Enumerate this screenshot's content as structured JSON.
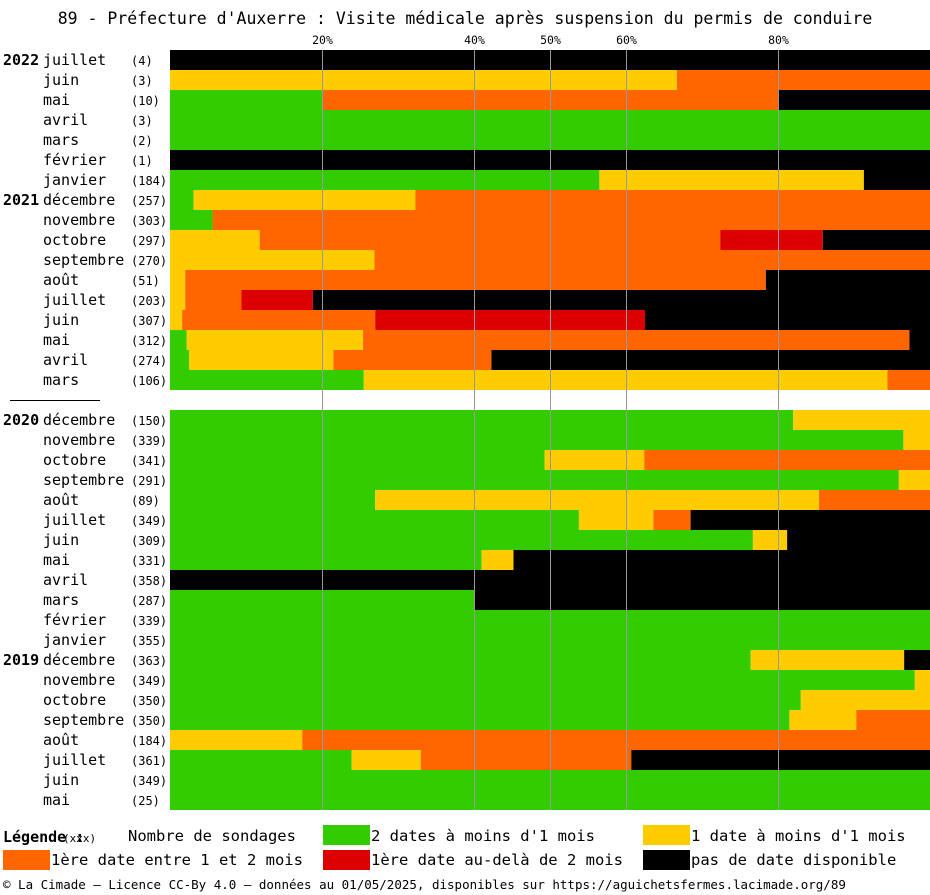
{
  "title": "89 - Préfecture d'Auxerre : Visite médicale après suspension du permis de conduire",
  "chart_data": {
    "type": "bar",
    "orientation": "horizontal",
    "stacked": true,
    "x_unit": "percent",
    "xlim": [
      0,
      100
    ],
    "x_ticks": [
      {
        "value": 20,
        "label": "20%"
      },
      {
        "value": 40,
        "label": "40%"
      },
      {
        "value": 50,
        "label": "50%"
      },
      {
        "value": 60,
        "label": "60%"
      },
      {
        "value": 80,
        "label": "80%"
      }
    ],
    "grid": true,
    "categories_order": [
      "green",
      "yellow",
      "orange",
      "red",
      "black"
    ],
    "colors": {
      "green": "#33cc00",
      "yellow": "#ffcc00",
      "orange": "#ff6600",
      "red": "#dd0000",
      "black": "#000000"
    },
    "years": [
      {
        "label": "2022",
        "months": [
          {
            "month": "juillet",
            "count": "(4)",
            "values": [
              0,
              0,
              0,
              0,
              100
            ]
          },
          {
            "month": "juin",
            "count": "(3)",
            "values": [
              0,
              66.7,
              33.3,
              0,
              0
            ]
          },
          {
            "month": "mai",
            "count": "(10)",
            "values": [
              20,
              0,
              60,
              0,
              20
            ]
          },
          {
            "month": "avril",
            "count": "(3)",
            "values": [
              100,
              0,
              0,
              0,
              0
            ]
          },
          {
            "month": "mars",
            "count": "(2)",
            "values": [
              100,
              0,
              0,
              0,
              0
            ]
          },
          {
            "month": "février",
            "count": "(1)",
            "values": [
              0,
              0,
              0,
              0,
              100
            ]
          },
          {
            "month": "janvier",
            "count": "(184)",
            "values": [
              56.5,
              34.8,
              0,
              0,
              8.7
            ]
          }
        ]
      },
      {
        "label": "2021",
        "months": [
          {
            "month": "décembre",
            "count": "(257)",
            "values": [
              3.1,
              29.2,
              67.7,
              0,
              0
            ]
          },
          {
            "month": "novembre",
            "count": "(303)",
            "values": [
              5.6,
              0,
              94.4,
              0,
              0
            ]
          },
          {
            "month": "octobre",
            "count": "(297)",
            "values": [
              0,
              11.8,
              60.6,
              13.5,
              14.1
            ]
          },
          {
            "month": "septembre",
            "count": "(270)",
            "values": [
              0,
              26.9,
              73.1,
              0,
              0
            ]
          },
          {
            "month": "août",
            "count": "(51)",
            "values": [
              0,
              2,
              76.4,
              0,
              21.6
            ]
          },
          {
            "month": "juillet",
            "count": "(203)",
            "values": [
              0,
              2,
              7.4,
              9.4,
              81.2
            ]
          },
          {
            "month": "juin",
            "count": "(307)",
            "values": [
              0,
              1.6,
              25.4,
              35.5,
              37.5
            ]
          },
          {
            "month": "mai",
            "count": "(312)",
            "values": [
              2.2,
              23.2,
              71.9,
              0,
              2.7
            ]
          },
          {
            "month": "avril",
            "count": "(274)",
            "values": [
              2.5,
              19,
              20.8,
              0,
              57.7
            ]
          },
          {
            "month": "mars",
            "count": "(106)",
            "values": [
              25.5,
              68.9,
              5.6,
              0,
              0
            ]
          }
        ]
      },
      {
        "label": "2020",
        "months": [
          {
            "month": "décembre",
            "count": "(150)",
            "values": [
              82,
              18,
              0,
              0,
              0
            ]
          },
          {
            "month": "novembre",
            "count": "(339)",
            "values": [
              96.5,
              3.5,
              0,
              0,
              0
            ]
          },
          {
            "month": "octobre",
            "count": "(341)",
            "values": [
              49.3,
              13.1,
              37.6,
              0,
              0
            ]
          },
          {
            "month": "septembre",
            "count": "(291)",
            "values": [
              95.9,
              4.1,
              0,
              0,
              0
            ]
          },
          {
            "month": "août",
            "count": "(89)",
            "values": [
              27,
              58.4,
              14.6,
              0,
              0
            ]
          },
          {
            "month": "juillet",
            "count": "(349)",
            "values": [
              53.8,
              9.8,
              4.9,
              0,
              31.5
            ]
          },
          {
            "month": "juin",
            "count": "(309)",
            "values": [
              76.7,
              4.5,
              0,
              0,
              18.8
            ]
          },
          {
            "month": "mai",
            "count": "(331)",
            "values": [
              41,
              4.2,
              0,
              0,
              54.8
            ]
          },
          {
            "month": "avril",
            "count": "(358)",
            "values": [
              0,
              0,
              0,
              0,
              100
            ]
          },
          {
            "month": "mars",
            "count": "(287)",
            "values": [
              40,
              0,
              0,
              0,
              60
            ]
          },
          {
            "month": "février",
            "count": "(339)",
            "values": [
              100,
              0,
              0,
              0,
              0
            ]
          },
          {
            "month": "janvier",
            "count": "(355)",
            "values": [
              100,
              0,
              0,
              0,
              0
            ]
          }
        ]
      },
      {
        "label": "2019",
        "months": [
          {
            "month": "décembre",
            "count": "(363)",
            "values": [
              76.4,
              20.2,
              0,
              0,
              3.4
            ]
          },
          {
            "month": "novembre",
            "count": "(349)",
            "values": [
              98,
              2,
              0,
              0,
              0
            ]
          },
          {
            "month": "octobre",
            "count": "(350)",
            "values": [
              83,
              17,
              0,
              0,
              0
            ]
          },
          {
            "month": "septembre",
            "count": "(350)",
            "values": [
              81.5,
              8.8,
              9.7,
              0,
              0
            ]
          },
          {
            "month": "août",
            "count": "(184)",
            "values": [
              0,
              17.4,
              82.6,
              0,
              0
            ]
          },
          {
            "month": "juillet",
            "count": "(361)",
            "values": [
              23.9,
              9.1,
              27.7,
              0,
              39.3
            ]
          },
          {
            "month": "juin",
            "count": "(349)",
            "values": [
              100,
              0,
              0,
              0,
              0
            ]
          },
          {
            "month": "mai",
            "count": "(25)",
            "values": [
              100,
              0,
              0,
              0,
              0
            ]
          }
        ]
      }
    ]
  },
  "legend": {
    "title": "Légende :",
    "count_note": "(xxx)",
    "count_label": "Nombre de sondages",
    "items": [
      {
        "key": "green",
        "label": "2 dates à moins d'1 mois"
      },
      {
        "key": "yellow",
        "label": "1 date à moins d'1 mois"
      },
      {
        "key": "orange",
        "label": "1ère date entre 1 et 2 mois"
      },
      {
        "key": "red",
        "label": "1ère date au-delà de 2 mois"
      },
      {
        "key": "black",
        "label": "pas de date disponible"
      }
    ]
  },
  "footer": "© La Cimade — Licence CC-By 4.0 — données au 01/05/2025, disponibles sur https://aguichetsfermes.lacimade.org/89"
}
